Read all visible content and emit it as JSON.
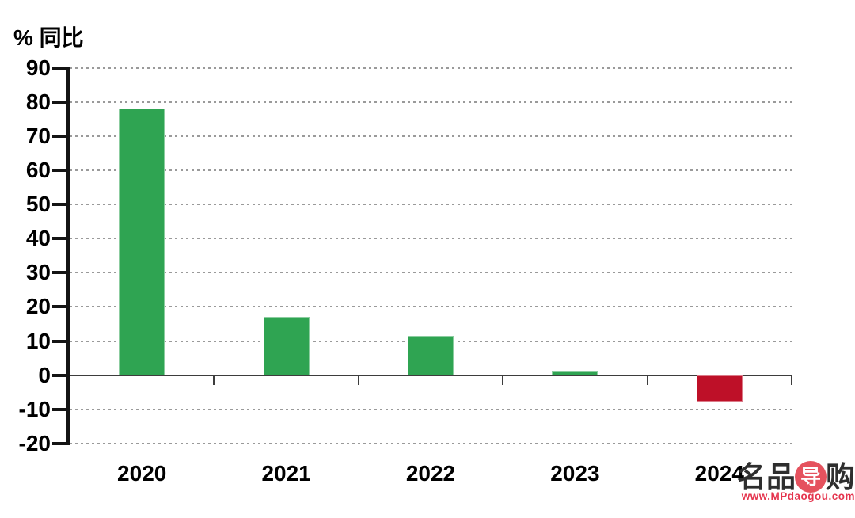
{
  "chart_data": {
    "type": "bar",
    "title": "% 同比",
    "ylabel": "% 同比",
    "xlabel": "",
    "categories": [
      "2020",
      "2021",
      "2022",
      "2023",
      "2024"
    ],
    "values": [
      78.2,
      17.2,
      11.4,
      1.1,
      -7.8
    ],
    "ylim": [
      -20,
      90
    ],
    "ytick_step": 10,
    "yticks": [
      90,
      80,
      70,
      60,
      50,
      40,
      30,
      20,
      10,
      0,
      -10,
      -20
    ],
    "grid": "horizontal-dashed",
    "legend": "none",
    "colors": {
      "positive": "#2FA452",
      "negative": "#BE1028",
      "axis": "#141414",
      "baseline": "#3d3d3d",
      "grid": "#9a9a9a"
    }
  },
  "watermark": {
    "brand_part1": "名品",
    "brand_circle_char": "导",
    "brand_part2": "购",
    "url": "www.MPdaogou.com",
    "circle_color": "#E5525E",
    "url_color": "#E5344E",
    "text_color": "#2E2E2E"
  }
}
